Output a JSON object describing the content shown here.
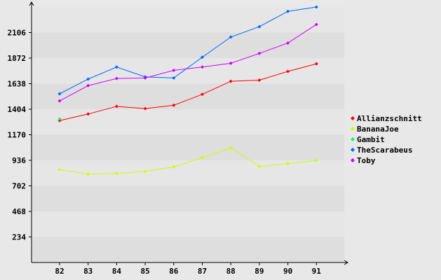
{
  "chart_data": {
    "type": "line",
    "title": "",
    "xlabel": "",
    "ylabel": "",
    "x": [
      "82",
      "83",
      "84",
      "85",
      "86",
      "87",
      "88",
      "89",
      "90",
      "91"
    ],
    "yticks": [
      "234",
      "468",
      "702",
      "936",
      "1170",
      "1404",
      "1638",
      "1872",
      "2106"
    ],
    "ylim": [
      0,
      2340
    ],
    "grid": "alternating horizontal bands",
    "legend_position": "right",
    "series": [
      {
        "name": "Allianzschnitt",
        "color": "#ff0000",
        "values": [
          1300,
          1360,
          1430,
          1410,
          1440,
          1540,
          1660,
          1670,
          1750,
          1820
        ]
      },
      {
        "name": "BananaJoe",
        "color": "#ccff00",
        "values": [
          850,
          810,
          815,
          835,
          875,
          960,
          1050,
          880,
          905,
          935
        ]
      },
      {
        "name": "Gambit",
        "color": "#00ff66",
        "values": [
          1315,
          null,
          null,
          null,
          null,
          null,
          null,
          null,
          null,
          null
        ]
      },
      {
        "name": "TheScarabeus",
        "color": "#0066ff",
        "values": [
          1545,
          1680,
          1790,
          1700,
          1690,
          1880,
          2065,
          2160,
          2300,
          2340
        ]
      },
      {
        "name": "Toby",
        "color": "#cc00ff",
        "values": [
          1480,
          1620,
          1685,
          1690,
          1760,
          1790,
          1825,
          1915,
          2010,
          2180
        ]
      }
    ]
  }
}
